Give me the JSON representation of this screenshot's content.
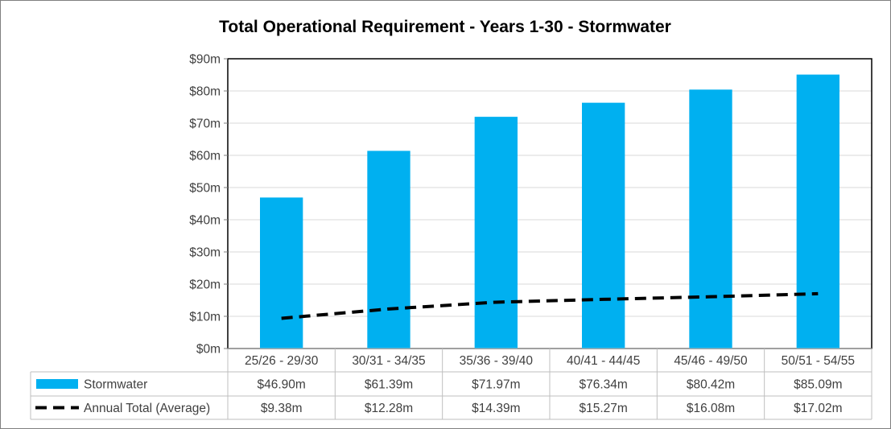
{
  "chart_data": {
    "type": "bar",
    "title": "Total Operational Requirement - Years 1-30 - Stormwater",
    "categories": [
      "25/26 - 29/30",
      "30/31 - 34/35",
      "35/36 - 39/40",
      "40/41 - 44/45",
      "45/46 - 49/50",
      "50/51 - 54/55"
    ],
    "ylim": [
      0,
      90
    ],
    "ytick_values": [
      0,
      10,
      20,
      30,
      40,
      50,
      60,
      70,
      80,
      90
    ],
    "ytick_labels": [
      "$0m",
      "$10m",
      "$20m",
      "$30m",
      "$40m",
      "$50m",
      "$60m",
      "$70m",
      "$80m",
      "$90m"
    ],
    "grid": true,
    "legend_placement": "data-table",
    "series": [
      {
        "name": "Stormwater",
        "kind": "bar",
        "color": "#00B0F0",
        "values": [
          46.9,
          61.39,
          71.97,
          76.34,
          80.42,
          85.09
        ],
        "labels": [
          "$46.90m",
          "$61.39m",
          "$71.97m",
          "$76.34m",
          "$80.42m",
          "$85.09m"
        ]
      },
      {
        "name": "Annual Total (Average)",
        "kind": "dashed-line",
        "color": "#000000",
        "values": [
          9.38,
          12.28,
          14.39,
          15.27,
          16.08,
          17.02
        ],
        "labels": [
          "$9.38m",
          "$12.28m",
          "$14.39m",
          "$15.27m",
          "$16.08m",
          "$17.02m"
        ]
      }
    ]
  }
}
